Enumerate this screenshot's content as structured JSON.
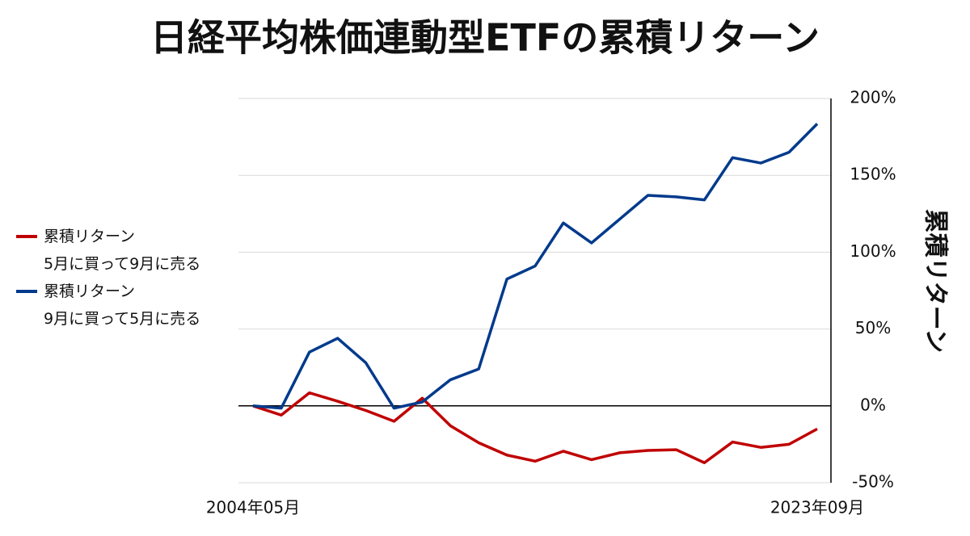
{
  "chart_data": {
    "type": "line",
    "title": "日経平均株価連動型ETFの累積リターン",
    "y_label": "累積リターン",
    "categories": [
      "2004年05月",
      null,
      null,
      null,
      null,
      null,
      null,
      null,
      null,
      null,
      null,
      null,
      null,
      null,
      null,
      null,
      null,
      null,
      null,
      null,
      "2023年09月"
    ],
    "series": [
      {
        "name": "累積リターン\n5月に買って9月に売る",
        "color": "#c00000",
        "values": [
          0,
          -6,
          8.5,
          3,
          -3,
          -10,
          5,
          -13,
          -24,
          -32,
          -36,
          -29.5,
          -35,
          -30.5,
          -29,
          -28.5,
          -37,
          -23.5,
          -27,
          -25,
          -15
        ]
      },
      {
        "name": "累積リターン\n9月に買って5月に売る",
        "color": "#003a8c",
        "values": [
          0,
          -1.5,
          35,
          44,
          28,
          -1.5,
          2.5,
          17,
          24,
          82.5,
          91,
          119,
          106,
          121.5,
          137,
          136,
          134,
          161.5,
          158,
          165,
          183.5
        ]
      }
    ],
    "ylim": [
      -50,
      200
    ],
    "yticks": [
      {
        "value": -50,
        "label": "-50%"
      },
      {
        "value": 0,
        "label": "0%"
      },
      {
        "value": 50,
        "label": "50%"
      },
      {
        "value": 100,
        "label": "100%"
      },
      {
        "value": 150,
        "label": "150%"
      },
      {
        "value": 200,
        "label": "200%"
      }
    ],
    "grid": true,
    "y_axis_side": "right",
    "legend": "left"
  }
}
